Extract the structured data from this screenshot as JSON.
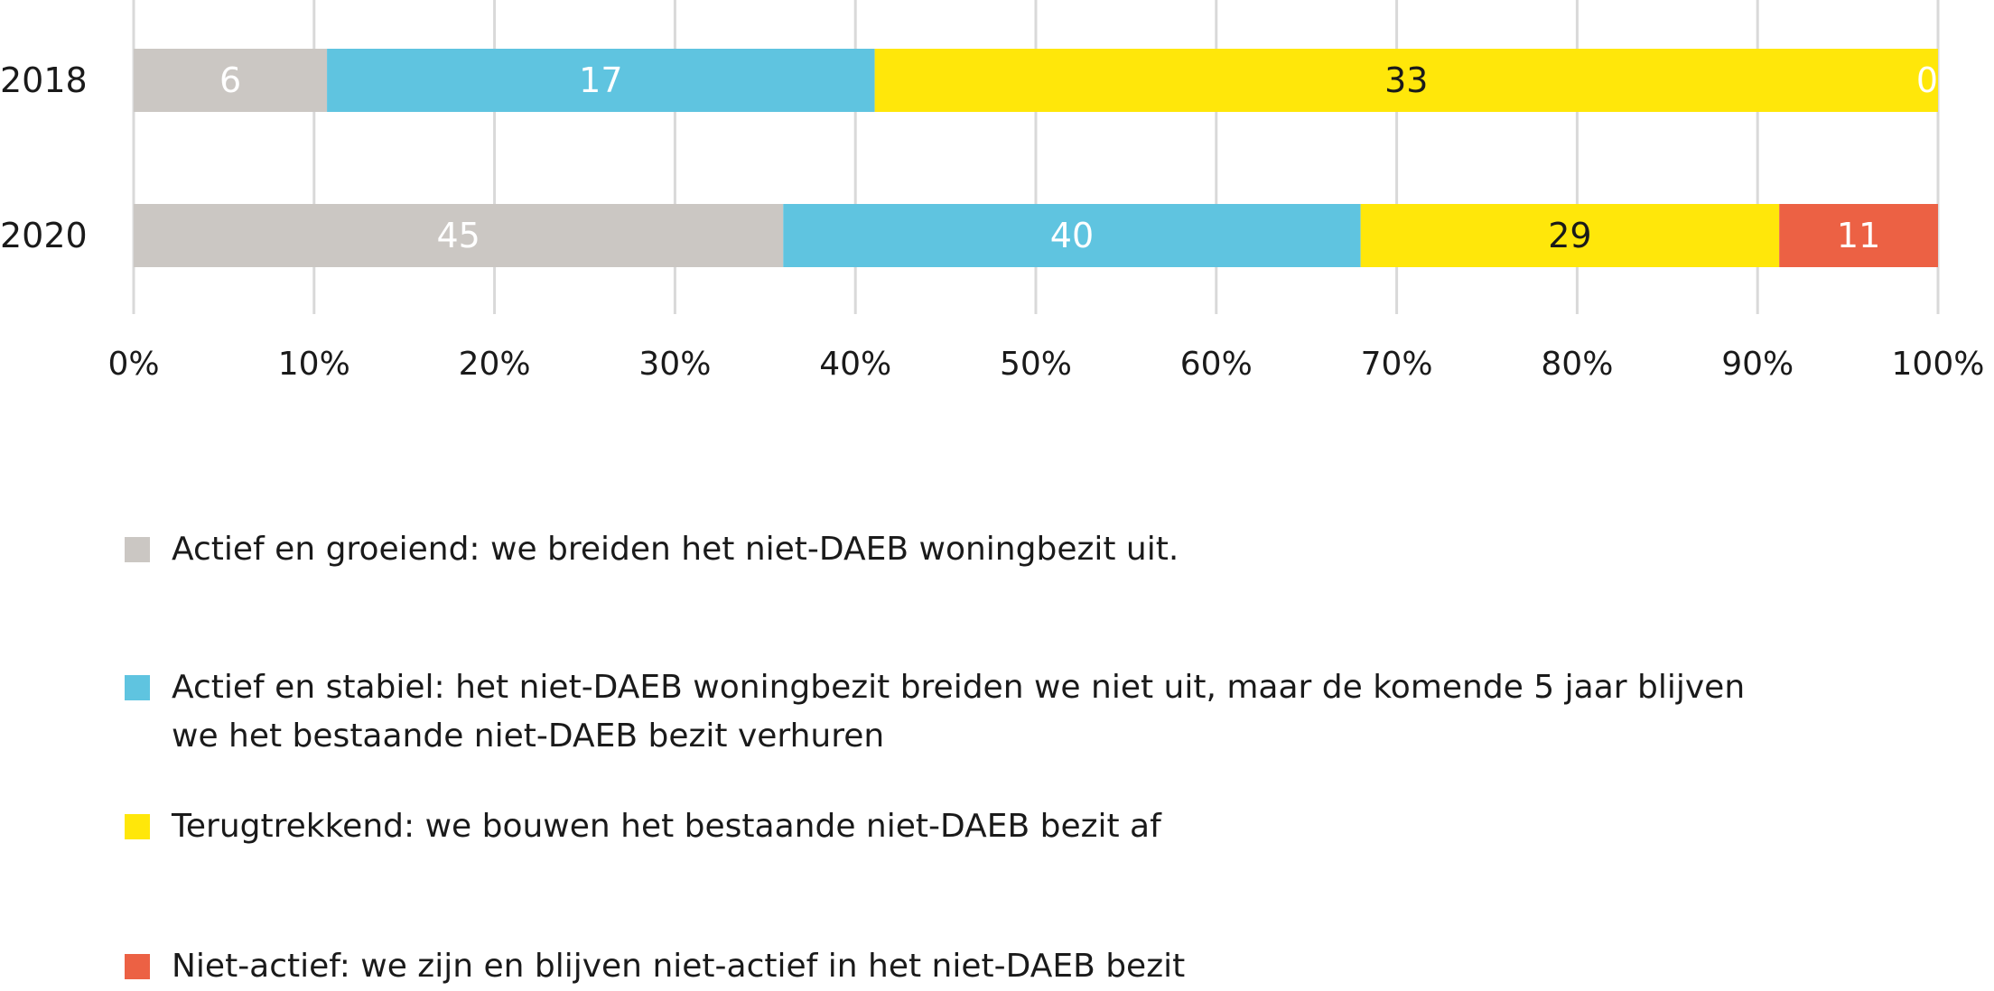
{
  "chart_data": {
    "type": "bar",
    "orientation": "horizontal",
    "stacked": "percent",
    "categories": [
      "2018",
      "2020"
    ],
    "series": [
      {
        "name": "Actief en groeiend: we breiden het niet-DAEB woningbezit uit.",
        "values": [
          6,
          45
        ],
        "color": "#CBC7C3",
        "label_color": "#ffffff"
      },
      {
        "name": "Actief en stabiel: het niet-DAEB woningbezit breiden we niet uit, maar de komende 5 jaar blijven\nwe het bestaande niet-DAEB bezit verhuren",
        "values": [
          17,
          40
        ],
        "color": "#5FC4E0",
        "label_color": "#ffffff"
      },
      {
        "name": "Terugtrekkend: we bouwen het bestaande niet-DAEB bezit af",
        "values": [
          33,
          29
        ],
        "color": "#FFE70A",
        "label_color": "#1a1a1a"
      },
      {
        "name": "Niet-actief: we zijn en blijven niet-actief in het niet-DAEB bezit",
        "values": [
          0,
          11
        ],
        "color": "#EC6144",
        "label_color": "#ffffff"
      }
    ],
    "x_ticks": [
      "0%",
      "10%",
      "20%",
      "30%",
      "40%",
      "50%",
      "60%",
      "70%",
      "80%",
      "90%",
      "100%"
    ],
    "xlim": [
      0,
      100
    ],
    "grid": "vertical",
    "grid_color": "#D9D9D9",
    "legend_position": "bottom"
  }
}
